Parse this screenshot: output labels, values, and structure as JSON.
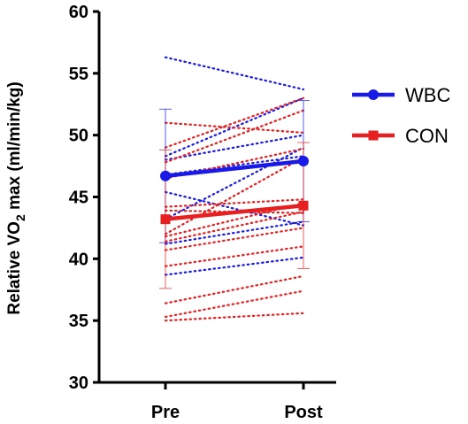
{
  "chart_data": {
    "type": "line",
    "title": "",
    "xlabel": "",
    "ylabel_prefix": "Relative VO",
    "ylabel_subscript": "2",
    "ylabel_suffix": " max (ml/min/kg)",
    "categories": [
      "Pre",
      "Post"
    ],
    "y_ticks": [
      "30",
      "35",
      "40",
      "45",
      "50",
      "55",
      "60"
    ],
    "ylim": [
      30,
      60
    ],
    "legend_position": "right",
    "series": [
      {
        "name": "WBC",
        "color": "#1a1ae6",
        "marker": "circle",
        "mean": [
          46.7,
          47.9
        ],
        "error_low": [
          41.3,
          43.0
        ],
        "error_high": [
          52.1,
          52.8
        ],
        "individuals": [
          [
            56.3,
            53.7
          ],
          [
            48.3,
            53.0
          ],
          [
            48.0,
            50.0
          ],
          [
            46.8,
            48.3
          ],
          [
            45.4,
            42.7
          ],
          [
            43.2,
            49.0
          ],
          [
            41.2,
            43.0
          ],
          [
            38.7,
            40.1
          ]
        ]
      },
      {
        "name": "CON",
        "color": "#e62020",
        "marker": "square",
        "mean": [
          43.2,
          44.3
        ],
        "error_low": [
          37.6,
          39.2
        ],
        "error_high": [
          48.8,
          49.4
        ],
        "individuals": [
          [
            51.0,
            50.2
          ],
          [
            49.0,
            53.0
          ],
          [
            47.8,
            52.0
          ],
          [
            46.5,
            48.9
          ],
          [
            44.2,
            44.8
          ],
          [
            43.9,
            43.7
          ],
          [
            42.0,
            48.2
          ],
          [
            41.8,
            44.5
          ],
          [
            41.4,
            43.8
          ],
          [
            40.7,
            42.5
          ],
          [
            39.4,
            41.0
          ],
          [
            36.4,
            38.6
          ],
          [
            35.3,
            37.4
          ],
          [
            35.0,
            35.6
          ]
        ]
      }
    ]
  }
}
